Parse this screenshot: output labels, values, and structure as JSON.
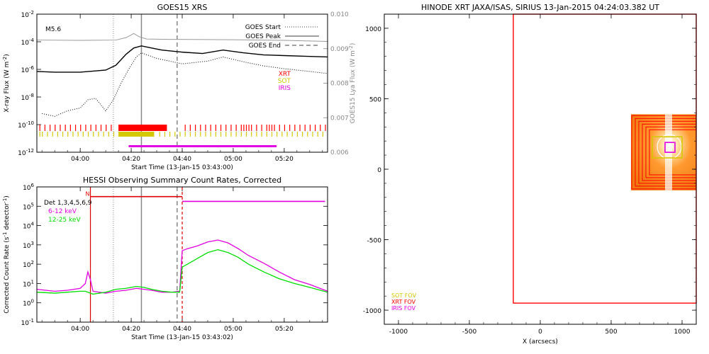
{
  "chart_data": [
    {
      "id": "goes",
      "type": "line",
      "title": "GOES15 XRS",
      "xlabel": "Start Time (13-Jan-15 03:43:00)",
      "ylabel": "X-ray Flux (W m",
      "ylabel_sup": "-2",
      "ylabel_end": ")",
      "y2label": "GOES15 Lya Flux (W m",
      "y2label_sup": "-2",
      "y2label_end": ")",
      "flare_class": "M5.6",
      "xlim": [
        "03:43",
        "05:37"
      ],
      "ylim_log10": [
        -12,
        -2
      ],
      "y2lim": [
        0.006,
        0.01
      ],
      "x_ticks": [
        "04:00",
        "04:20",
        "04:40",
        "05:00",
        "05:20"
      ],
      "y_ticks_exp": [
        "-12",
        "-10",
        "-8",
        "-6",
        "-4",
        "-2"
      ],
      "y2_ticks": [
        "0.006",
        "0.007",
        "0.008",
        "0.009",
        "0.010"
      ],
      "legend": [
        {
          "label": "GOES Start",
          "style": "dotted"
        },
        {
          "label": "GOES Peak",
          "style": "solid"
        },
        {
          "label": "GOES End",
          "style": "dashed"
        }
      ],
      "instruments": [
        {
          "label": "XRT",
          "color": "#ff0000"
        },
        {
          "label": "SOT",
          "color": "#d4c800"
        },
        {
          "label": "IRIS",
          "color": "#e000e0"
        }
      ],
      "events": {
        "start": "04:13",
        "peak": "04:24",
        "end": "04:38"
      },
      "series": [
        {
          "id": "long",
          "color": "#000000",
          "x": [
            "03:43",
            "03:50",
            "04:00",
            "04:10",
            "04:14",
            "04:18",
            "04:21",
            "04:24",
            "04:28",
            "04:32",
            "04:40",
            "04:48",
            "04:56",
            "05:04",
            "05:12",
            "05:20",
            "05:28",
            "05:37"
          ],
          "y_log10": [
            -6.15,
            -6.2,
            -6.2,
            -6.05,
            -5.7,
            -4.9,
            -4.45,
            -4.3,
            -4.45,
            -4.6,
            -4.75,
            -4.85,
            -4.6,
            -4.8,
            -4.95,
            -5.0,
            -5.05,
            -5.1
          ]
        },
        {
          "id": "short",
          "color": "#000000",
          "x": [
            "03:45",
            "03:50",
            "03:55",
            "04:00",
            "04:03",
            "04:06",
            "04:10",
            "04:13",
            "04:16",
            "04:19",
            "04:22",
            "04:24",
            "04:30",
            "04:40",
            "04:50",
            "04:56",
            "05:04",
            "05:12",
            "05:20",
            "05:30",
            "05:37"
          ],
          "y_log10": [
            -9.2,
            -9.4,
            -9.0,
            -8.8,
            -8.2,
            -8.1,
            -9.0,
            -8.2,
            -7.0,
            -6.0,
            -5.1,
            -4.8,
            -5.2,
            -5.6,
            -5.4,
            -5.1,
            -5.45,
            -5.75,
            -5.95,
            -6.15,
            -6.3
          ]
        },
        {
          "id": "lya",
          "color": "#999999",
          "axis": "right",
          "x": [
            "03:43",
            "04:00",
            "04:14",
            "04:18",
            "04:21",
            "04:23",
            "04:26",
            "04:35",
            "05:00",
            "05:20",
            "05:37"
          ],
          "y": [
            0.00925,
            0.00924,
            0.00925,
            0.00932,
            0.00944,
            0.00935,
            0.00928,
            0.00927,
            0.00926,
            0.00924,
            0.00921
          ]
        }
      ],
      "bars": [
        {
          "name": "XRT",
          "color": "#ff0000",
          "row": 0,
          "solid": [
            [
              "04:15",
              "04:34"
            ]
          ],
          "ticks": [
            "03:44",
            "03:46",
            "03:48",
            "03:50",
            "03:52",
            "03:54",
            "03:56",
            "03:58",
            "04:00",
            "04:02",
            "04:04",
            "04:06",
            "04:08",
            "04:10",
            "04:12",
            "04:41",
            "04:43",
            "04:45",
            "04:47",
            "04:49",
            "04:51",
            "04:53",
            "04:55",
            "04:57",
            "04:59",
            "05:01",
            "05:03",
            "05:04",
            "05:05",
            "05:06",
            "05:07",
            "05:09",
            "05:11",
            "05:13",
            "05:14",
            "05:15",
            "05:16",
            "05:18",
            "05:20",
            "05:22",
            "05:24",
            "05:26",
            "05:28",
            "05:30",
            "05:32",
            "05:34",
            "05:36"
          ]
        },
        {
          "name": "SOT",
          "color": "#d4c800",
          "row": 1,
          "solid": [
            [
              "04:15",
              "04:29"
            ]
          ],
          "ticks": [
            "03:44",
            "03:45",
            "03:47",
            "03:49",
            "03:51",
            "03:53",
            "03:55",
            "03:57",
            "03:59",
            "04:01",
            "04:03",
            "04:05",
            "04:07",
            "04:09",
            "04:11",
            "04:13",
            "04:31",
            "04:33",
            "04:35",
            "04:37",
            "04:39",
            "04:41",
            "04:43",
            "04:45",
            "04:47",
            "04:49",
            "04:51",
            "04:53",
            "04:55",
            "04:57",
            "04:59",
            "05:01",
            "05:03",
            "05:05",
            "05:07",
            "05:09",
            "05:11",
            "05:13",
            "05:15",
            "05:17",
            "05:19",
            "05:21",
            "05:23",
            "05:25",
            "05:27",
            "05:29",
            "05:31",
            "05:33",
            "05:35"
          ]
        },
        {
          "name": "IRIS",
          "color": "#e000e0",
          "row": 2,
          "solid": [
            [
              "04:19",
              "05:17"
            ]
          ],
          "ticks": []
        }
      ]
    },
    {
      "id": "hessi",
      "type": "line",
      "title": "HESSI Observing Summary Count Rates, Corrected",
      "xlabel": "Start Time (13-Jan-15 03:43:02)",
      "ylabel": "Corrected Count Rate (s",
      "ylabel_sup": "-1",
      "ylabel_mid": " detector",
      "ylabel_sup2": "-1",
      "ylabel_end": ")",
      "xlim": [
        "03:43",
        "05:37"
      ],
      "ylim_log10": [
        -1,
        6
      ],
      "x_ticks": [
        "04:00",
        "04:20",
        "04:40",
        "05:00",
        "05:20"
      ],
      "y_ticks_exp": [
        "-1",
        "0",
        "1",
        "2",
        "3",
        "4",
        "5",
        "6"
      ],
      "detectors": "Det 1,3,4,5,6,9",
      "night_marker": "N",
      "events": {
        "start": "04:13",
        "peak": "04:24",
        "end": "04:38",
        "red": "04:04",
        "red_dashed": "04:40"
      },
      "series": [
        {
          "name": "6-12 keV",
          "color": "#e000e0",
          "x": [
            "03:43",
            "03:50",
            "03:55",
            "04:00",
            "04:02",
            "04:03",
            "04:04",
            "04:05",
            "04:10",
            "04:14",
            "04:18",
            "04:22",
            "04:25",
            "04:28",
            "04:32",
            "04:36",
            "04:39",
            "04:40",
            "04:42",
            "04:46",
            "04:50",
            "04:54",
            "04:58",
            "05:02",
            "05:06",
            "05:12",
            "05:18",
            "05:24",
            "05:30",
            "05:37"
          ],
          "y_log10": [
            0.7,
            0.6,
            0.65,
            0.75,
            1.0,
            1.6,
            1.2,
            0.6,
            0.5,
            0.6,
            0.65,
            0.75,
            0.7,
            0.65,
            0.55,
            0.55,
            0.6,
            2.7,
            2.8,
            2.95,
            3.15,
            3.25,
            3.1,
            2.8,
            2.45,
            2.05,
            1.6,
            1.2,
            0.95,
            0.6
          ]
        },
        {
          "name": "12-25 keV",
          "color": "#00dd00",
          "x": [
            "03:43",
            "03:50",
            "03:55",
            "04:00",
            "04:02",
            "04:05",
            "04:10",
            "04:14",
            "04:18",
            "04:22",
            "04:25",
            "04:28",
            "04:32",
            "04:36",
            "04:39",
            "04:40",
            "04:42",
            "04:46",
            "04:50",
            "04:54",
            "04:58",
            "05:02",
            "05:06",
            "05:12",
            "05:18",
            "05:24",
            "05:30",
            "05:37"
          ],
          "y_log10": [
            0.55,
            0.5,
            0.55,
            0.6,
            0.6,
            0.45,
            0.55,
            0.7,
            0.75,
            0.85,
            0.8,
            0.7,
            0.6,
            0.55,
            0.55,
            1.85,
            2.0,
            2.3,
            2.6,
            2.75,
            2.6,
            2.35,
            2.0,
            1.6,
            1.25,
            1.0,
            0.8,
            0.55
          ]
        }
      ],
      "attenuator": {
        "color": "#dd0000",
        "x": [
          "04:04",
          "04:40"
        ],
        "y_log10": 5.5
      },
      "upper_magenta": {
        "color": "#e000e0",
        "x": [
          "04:40",
          "05:36"
        ],
        "y_log10": 5.25
      }
    },
    {
      "id": "fov",
      "type": "scatter",
      "title": "HINODE XRT JAXA/ISAS, SIRIUS 13-Jan-2015 04:24:03.382 UT",
      "xlabel": "X (arcsecs)",
      "xlim": [
        -1100,
        1100
      ],
      "ylim": [
        -1100,
        1100
      ],
      "x_ticks": [
        "-1000",
        "-500",
        "0",
        "500",
        "1000"
      ],
      "y_ticks": [
        "1000",
        "500",
        "0",
        "-500",
        "-1000"
      ],
      "sun_center": [
        910,
        160
      ],
      "fov_boxes": [
        {
          "name": "XRT",
          "color": "#ff0000",
          "x": [
            -190,
            1100
          ],
          "y": [
            -950,
            1100
          ]
        },
        {
          "name": "SOT",
          "color": "#d4c800",
          "x": [
            790,
            1000
          ],
          "y": [
            80,
            230
          ]
        },
        {
          "name": "IRIS",
          "color": "#e000e0",
          "x": [
            880,
            950
          ],
          "y": [
            120,
            190
          ]
        }
      ],
      "legend": [
        {
          "label": "SOT FOV",
          "color": "#d4c800"
        },
        {
          "label": "XRT FOV",
          "color": "#ff0000"
        },
        {
          "label": "IRIS FOV",
          "color": "#e000e0"
        }
      ]
    }
  ]
}
